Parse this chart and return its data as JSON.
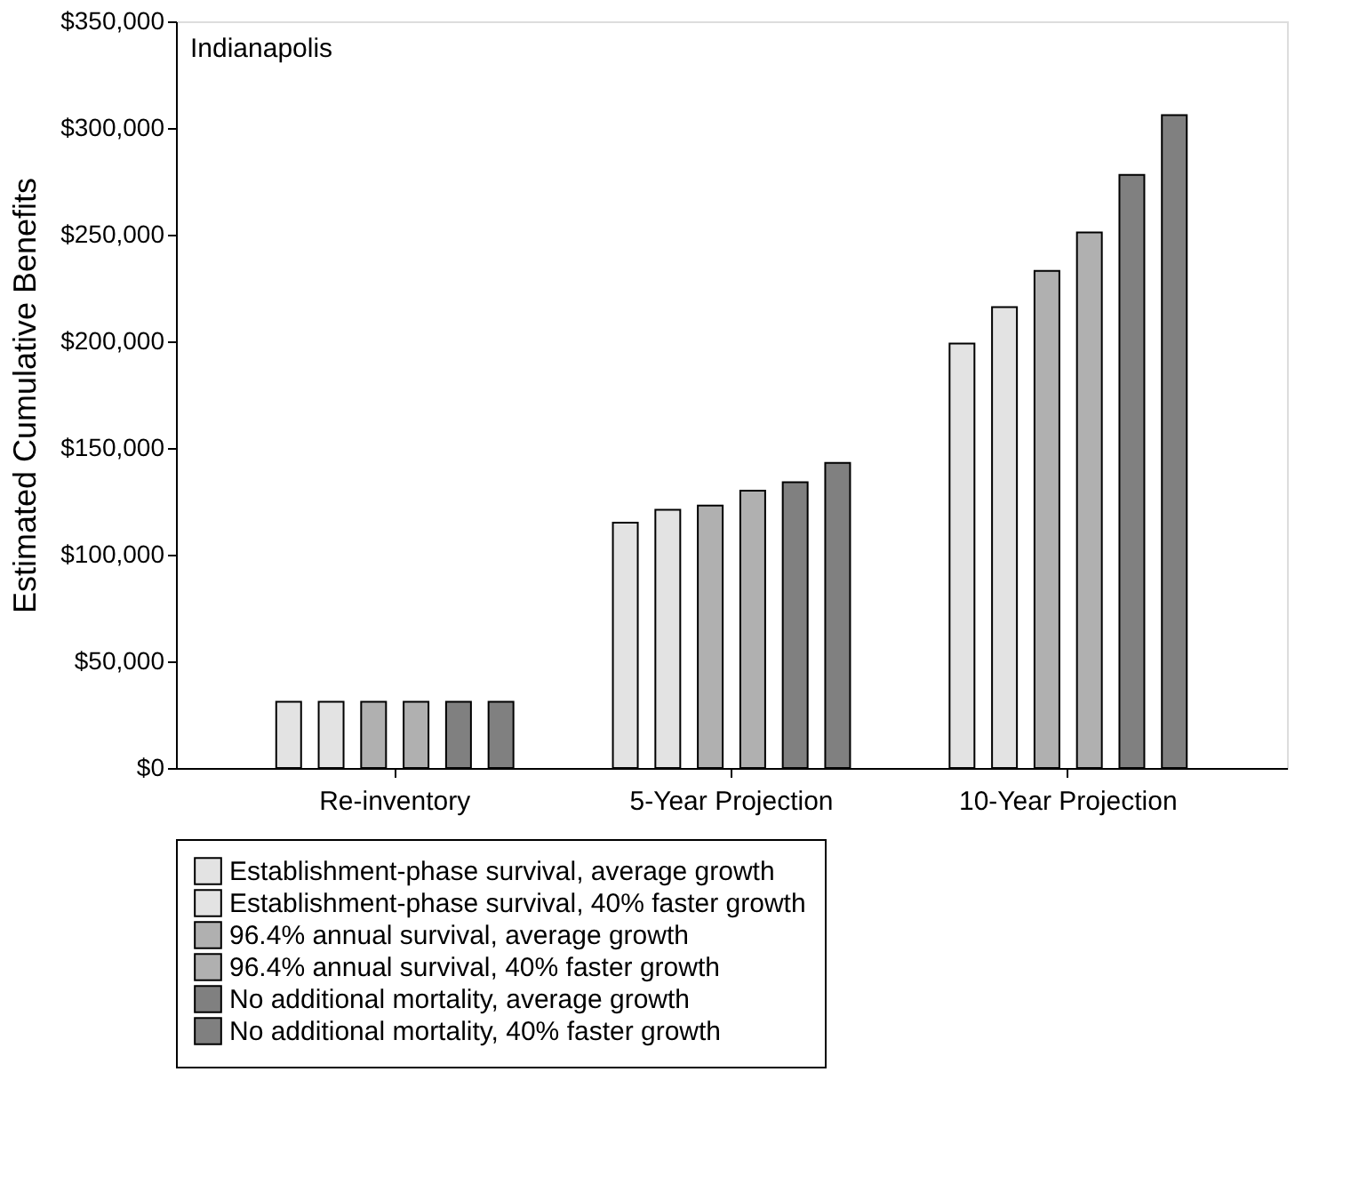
{
  "chart_data": {
    "type": "bar",
    "categories": [
      "Re-inventory",
      "5-Year Projection",
      "10-Year Projection"
    ],
    "ylabel": "Estimated Cumulative Benefits",
    "ylim": [
      0,
      350000
    ],
    "yticks": [
      {
        "value": 0,
        "label": "$0"
      },
      {
        "value": 50000,
        "label": "$50,000"
      },
      {
        "value": 100000,
        "label": "$100,000"
      },
      {
        "value": 150000,
        "label": "$150,000"
      },
      {
        "value": 200000,
        "label": "$200,000"
      },
      {
        "value": 250000,
        "label": "$250,000"
      },
      {
        "value": 300000,
        "label": "$300,000"
      },
      {
        "value": 350000,
        "label": "$350,000"
      }
    ],
    "grid": false,
    "legend": "bottom",
    "annotations": [
      "Indianapolis"
    ],
    "series": [
      {
        "name": "Establishment-phase survival, average growth",
        "color": "#e3e3e3",
        "values": [
          31000,
          115000,
          199000
        ]
      },
      {
        "name": "Establishment-phase survival, 40% faster growth",
        "color": "#e3e3e3",
        "values": [
          31000,
          121000,
          216000
        ]
      },
      {
        "name": "96.4% annual survival, average growth",
        "color": "#b0b0b0",
        "values": [
          31000,
          123000,
          233000
        ]
      },
      {
        "name": "96.4% annual survival, 40% faster growth",
        "color": "#b0b0b0",
        "values": [
          31000,
          130000,
          251000
        ]
      },
      {
        "name": "No additional mortality, average growth",
        "color": "#808080",
        "values": [
          31000,
          134000,
          278000
        ]
      },
      {
        "name": "No additional mortality, 40% faster growth",
        "color": "#808080",
        "values": [
          31000,
          143000,
          306000
        ]
      }
    ]
  }
}
